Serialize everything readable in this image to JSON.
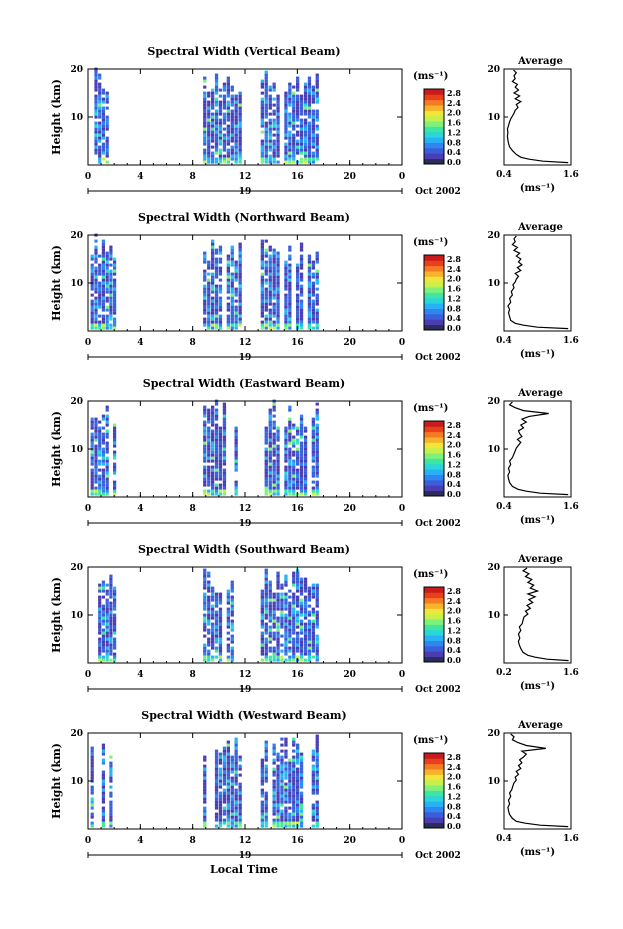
{
  "figure": {
    "xlabel_bottom": "Local Time",
    "date_label": "Oct 2002",
    "day_label": "19",
    "colorbar_unit": "(ms⁻¹)",
    "average_title": "Average",
    "average_xlabel": "(ms⁻¹)",
    "ylabel": "Height (km)",
    "colors": {
      "colorscale": [
        "#2c2c58",
        "#4a3db3",
        "#3a5fdb",
        "#2f86f0",
        "#27b2f5",
        "#2ad6d8",
        "#3fe6a3",
        "#7ff07a",
        "#c7f04c",
        "#f2e53a",
        "#f7b32b",
        "#f47a23",
        "#e8401c",
        "#c81b1b"
      ]
    }
  },
  "chart_data": [
    {
      "type": "heatmap",
      "title": "Spectral Width (Vertical Beam)",
      "xlabel": "",
      "ylabel": "Height (km)",
      "x_ticks": [
        "0",
        "4",
        "8",
        "12",
        "16",
        "20",
        "0"
      ],
      "y_ticks": [
        "10",
        "20"
      ],
      "xlim": [
        0,
        24
      ],
      "ylim": [
        0,
        20
      ],
      "colorbar_ticks": [
        "2.8",
        "2.4",
        "2.0",
        "1.6",
        "1.2",
        "0.8",
        "0.4",
        "0.0"
      ],
      "data_segments_hours": [
        [
          0.2,
          2.2
        ],
        [
          8.8,
          11.8
        ],
        [
          13.2,
          17.7
        ]
      ],
      "average_profile": {
        "title": "Average",
        "xlabel": "(ms⁻¹)",
        "x_ticks": [
          "0.4",
          "1.6"
        ],
        "y_ticks": [
          "10",
          "20"
        ],
        "xlim": [
          0.4,
          1.6
        ],
        "ylim": [
          0,
          20
        ],
        "x": [
          1.55,
          1.1,
          0.85,
          0.7,
          0.62,
          0.55,
          0.5,
          0.48,
          0.47,
          0.46,
          0.47,
          0.46,
          0.48,
          0.5,
          0.52,
          0.55,
          0.58,
          0.6,
          0.65,
          0.62,
          0.7,
          0.6,
          0.68,
          0.58,
          0.66,
          0.6,
          0.64,
          0.55,
          0.6,
          0.58,
          0.62,
          0.57
        ],
        "y": [
          0.5,
          0.8,
          1.2,
          1.6,
          2.2,
          3.0,
          3.8,
          4.5,
          5.2,
          6.0,
          6.8,
          7.5,
          8.2,
          9.0,
          9.6,
          10.2,
          10.8,
          11.4,
          12.0,
          12.6,
          13.2,
          13.8,
          14.4,
          15.0,
          15.6,
          16.2,
          16.8,
          17.4,
          18.0,
          18.6,
          19.2,
          19.8
        ]
      }
    },
    {
      "type": "heatmap",
      "title": "Spectral Width (Northward Beam)",
      "xlabel": "",
      "ylabel": "Height (km)",
      "x_ticks": [
        "0",
        "4",
        "8",
        "12",
        "16",
        "20",
        "0"
      ],
      "y_ticks": [
        "10",
        "20"
      ],
      "xlim": [
        0,
        24
      ],
      "ylim": [
        0,
        20
      ],
      "colorbar_ticks": [
        "2.8",
        "2.4",
        "2.0",
        "1.6",
        "1.2",
        "0.8",
        "0.4",
        "0.0"
      ],
      "data_segments_hours": [
        [
          0.2,
          2.2
        ],
        [
          8.8,
          11.8
        ],
        [
          13.2,
          17.7
        ]
      ],
      "average_profile": {
        "title": "Average",
        "xlabel": "(ms⁻¹)",
        "x_ticks": [
          "0.4",
          "1.6"
        ],
        "y_ticks": [
          "10",
          "20"
        ],
        "xlim": [
          0.4,
          1.6
        ],
        "ylim": [
          0,
          20
        ],
        "x": [
          1.55,
          1.0,
          0.75,
          0.6,
          0.52,
          0.5,
          0.48,
          0.5,
          0.47,
          0.52,
          0.5,
          0.55,
          0.53,
          0.58,
          0.56,
          0.6,
          0.62,
          0.66,
          0.6,
          0.7,
          0.64,
          0.72,
          0.66,
          0.7,
          0.62,
          0.68,
          0.58,
          0.64,
          0.55,
          0.6,
          0.58,
          0.62
        ],
        "y": [
          0.5,
          0.8,
          1.2,
          1.6,
          2.2,
          3.0,
          3.8,
          4.5,
          5.2,
          6.0,
          6.8,
          7.5,
          8.2,
          9.0,
          9.6,
          10.2,
          10.8,
          11.4,
          12.0,
          12.6,
          13.2,
          13.8,
          14.4,
          15.0,
          15.6,
          16.2,
          16.8,
          17.4,
          18.0,
          18.6,
          19.2,
          19.8
        ]
      }
    },
    {
      "type": "heatmap",
      "title": "Spectral Width (Eastward Beam)",
      "xlabel": "",
      "ylabel": "Height (km)",
      "x_ticks": [
        "0",
        "4",
        "8",
        "12",
        "16",
        "20",
        "0"
      ],
      "y_ticks": [
        "10",
        "20"
      ],
      "xlim": [
        0,
        24
      ],
      "ylim": [
        0,
        20
      ],
      "colorbar_ticks": [
        "2.8",
        "2.4",
        "2.0",
        "1.6",
        "1.2",
        "0.8",
        "0.4",
        "0.0"
      ],
      "data_segments_hours": [
        [
          0.2,
          2.2
        ],
        [
          8.8,
          11.8
        ],
        [
          13.2,
          17.7
        ]
      ],
      "average_profile": {
        "title": "Average",
        "xlabel": "(ms⁻¹)",
        "x_ticks": [
          "0.4",
          "1.6"
        ],
        "y_ticks": [
          "10",
          "20"
        ],
        "xlim": [
          0.4,
          1.6
        ],
        "ylim": [
          0,
          20
        ],
        "x": [
          1.55,
          1.05,
          0.8,
          0.65,
          0.55,
          0.5,
          0.48,
          0.47,
          0.5,
          0.48,
          0.52,
          0.5,
          0.55,
          0.58,
          0.6,
          0.62,
          0.66,
          0.7,
          0.64,
          0.72,
          0.68,
          0.66,
          0.75,
          0.7,
          0.8,
          0.72,
          0.85,
          1.2,
          0.75,
          0.6,
          0.5,
          0.55
        ],
        "y": [
          0.5,
          0.8,
          1.2,
          1.6,
          2.2,
          3.0,
          3.8,
          4.5,
          5.2,
          6.0,
          6.8,
          7.5,
          8.2,
          9.0,
          9.6,
          10.2,
          10.8,
          11.4,
          12.0,
          12.6,
          13.2,
          13.8,
          14.4,
          15.0,
          15.6,
          16.2,
          16.8,
          17.4,
          18.0,
          18.6,
          19.2,
          19.8
        ]
      }
    },
    {
      "type": "heatmap",
      "title": "Spectral Width (Southward Beam)",
      "xlabel": "",
      "ylabel": "Height (km)",
      "x_ticks": [
        "0",
        "4",
        "8",
        "12",
        "16",
        "20",
        "0"
      ],
      "y_ticks": [
        "10",
        "20"
      ],
      "xlim": [
        0,
        24
      ],
      "ylim": [
        0,
        20
      ],
      "colorbar_ticks": [
        "2.8",
        "2.4",
        "2.0",
        "1.6",
        "1.2",
        "0.8",
        "0.4",
        "0.0"
      ],
      "data_segments_hours": [
        [
          0.2,
          2.2
        ],
        [
          8.8,
          11.8
        ],
        [
          13.2,
          17.7
        ]
      ],
      "average_profile": {
        "title": "Average",
        "xlabel": "(ms⁻¹)",
        "x_ticks": [
          "0.2",
          "1.6"
        ],
        "y_ticks": [
          "10",
          "20"
        ],
        "xlim": [
          0.2,
          1.6
        ],
        "ylim": [
          0,
          20
        ],
        "x": [
          1.55,
          1.1,
          0.85,
          0.7,
          0.6,
          0.55,
          0.52,
          0.5,
          0.53,
          0.5,
          0.55,
          0.52,
          0.58,
          0.6,
          0.62,
          0.7,
          0.65,
          0.75,
          0.68,
          0.8,
          0.72,
          0.85,
          0.7,
          0.9,
          0.75,
          0.82,
          0.7,
          0.78,
          0.65,
          0.72,
          0.6,
          0.68
        ],
        "y": [
          0.5,
          0.8,
          1.2,
          1.6,
          2.2,
          3.0,
          3.8,
          4.5,
          5.2,
          6.0,
          6.8,
          7.5,
          8.2,
          9.0,
          9.6,
          10.2,
          10.8,
          11.4,
          12.0,
          12.6,
          13.2,
          13.8,
          14.4,
          15.0,
          15.6,
          16.2,
          16.8,
          17.4,
          18.0,
          18.6,
          19.2,
          19.8
        ]
      }
    },
    {
      "type": "heatmap",
      "title": "Spectral Width (Westward Beam)",
      "xlabel": "Local Time",
      "ylabel": "Height (km)",
      "x_ticks": [
        "0",
        "4",
        "8",
        "12",
        "16",
        "20",
        "0"
      ],
      "y_ticks": [
        "10",
        "20"
      ],
      "xlim": [
        0,
        24
      ],
      "ylim": [
        0,
        20
      ],
      "colorbar_ticks": [
        "2.8",
        "2.4",
        "2.0",
        "1.6",
        "1.2",
        "0.8",
        "0.4",
        "0.0"
      ],
      "data_segments_hours": [
        [
          0.2,
          2.2
        ],
        [
          8.8,
          11.8
        ],
        [
          13.2,
          17.7
        ]
      ],
      "average_profile": {
        "title": "Average",
        "xlabel": "(ms⁻¹)",
        "x_ticks": [
          "0.4",
          "1.6"
        ],
        "y_ticks": [
          "10",
          "20"
        ],
        "xlim": [
          0.4,
          1.6
        ],
        "ylim": [
          0,
          20
        ],
        "x": [
          1.55,
          1.05,
          0.78,
          0.62,
          0.55,
          0.5,
          0.48,
          0.47,
          0.5,
          0.48,
          0.52,
          0.5,
          0.54,
          0.56,
          0.58,
          0.62,
          0.6,
          0.66,
          0.62,
          0.7,
          0.66,
          0.72,
          0.68,
          0.75,
          0.8,
          0.72,
          1.15,
          0.8,
          0.65,
          0.55,
          0.58,
          0.52
        ],
        "y": [
          0.5,
          0.8,
          1.2,
          1.6,
          2.2,
          3.0,
          3.8,
          4.5,
          5.2,
          6.0,
          6.8,
          7.5,
          8.2,
          9.0,
          9.6,
          10.2,
          10.8,
          11.4,
          12.0,
          12.6,
          13.2,
          13.8,
          14.4,
          15.0,
          15.6,
          16.2,
          16.8,
          17.4,
          18.0,
          18.6,
          19.2,
          19.8
        ]
      }
    }
  ]
}
